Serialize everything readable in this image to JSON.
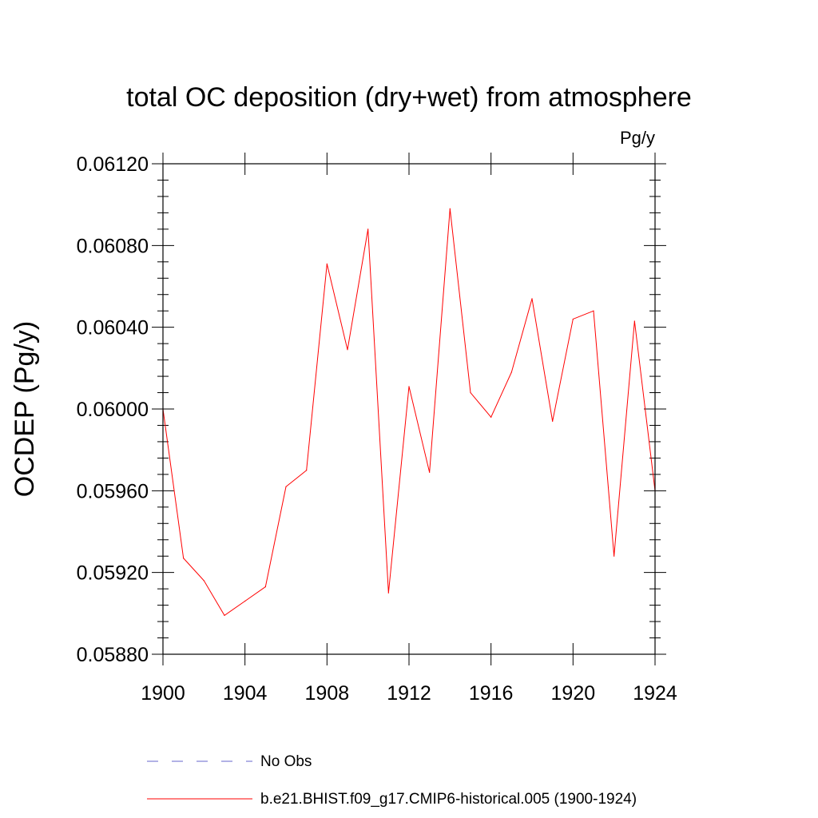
{
  "chart_data": {
    "type": "line",
    "title": "total OC deposition (dry+wet) from atmosphere",
    "units_label": "Pg/y",
    "ylabel": "OCDEP  (Pg/y)",
    "xlabel": "",
    "xlim": [
      1900,
      1924
    ],
    "ylim": [
      0.0588,
      0.0612
    ],
    "x_ticks": [
      1900,
      1904,
      1908,
      1912,
      1916,
      1920,
      1924
    ],
    "x_tick_labels": [
      "1900",
      "1904",
      "1908",
      "1912",
      "1916",
      "1920",
      "1924"
    ],
    "y_ticks": [
      0.0588,
      0.0592,
      0.0596,
      0.06,
      0.0604,
      0.0608,
      0.0612
    ],
    "y_tick_labels": [
      "0.05880",
      "0.05920",
      "0.05960",
      "0.06000",
      "0.06040",
      "0.06080",
      "0.06120"
    ],
    "grid": false,
    "legend_position": "bottom",
    "series": [
      {
        "name": "b.e21.BHIST.f09_g17.CMIP6-historical.005 (1900-1924)",
        "color": "#ff0000",
        "style": "solid",
        "x": [
          1900,
          1901,
          1902,
          1903,
          1904,
          1905,
          1906,
          1907,
          1908,
          1909,
          1910,
          1911,
          1912,
          1913,
          1914,
          1915,
          1916,
          1917,
          1918,
          1919,
          1920,
          1921,
          1922,
          1923,
          1924
        ],
        "values": [
          0.06,
          0.05927,
          0.05916,
          0.05899,
          0.05906,
          0.05913,
          0.05962,
          0.0597,
          0.06071,
          0.06029,
          0.06088,
          0.0591,
          0.06011,
          0.05969,
          0.06098,
          0.06008,
          0.05996,
          0.06018,
          0.06054,
          0.05994,
          0.06044,
          0.06048,
          0.05928,
          0.06043,
          0.0596
        ]
      }
    ],
    "legend": [
      {
        "label": "No Obs",
        "color": "#6666cc",
        "style": "dashed"
      },
      {
        "label": "b.e21.BHIST.f09_g17.CMIP6-historical.005 (1900-1924)",
        "color": "#ff0000",
        "style": "solid"
      }
    ]
  }
}
